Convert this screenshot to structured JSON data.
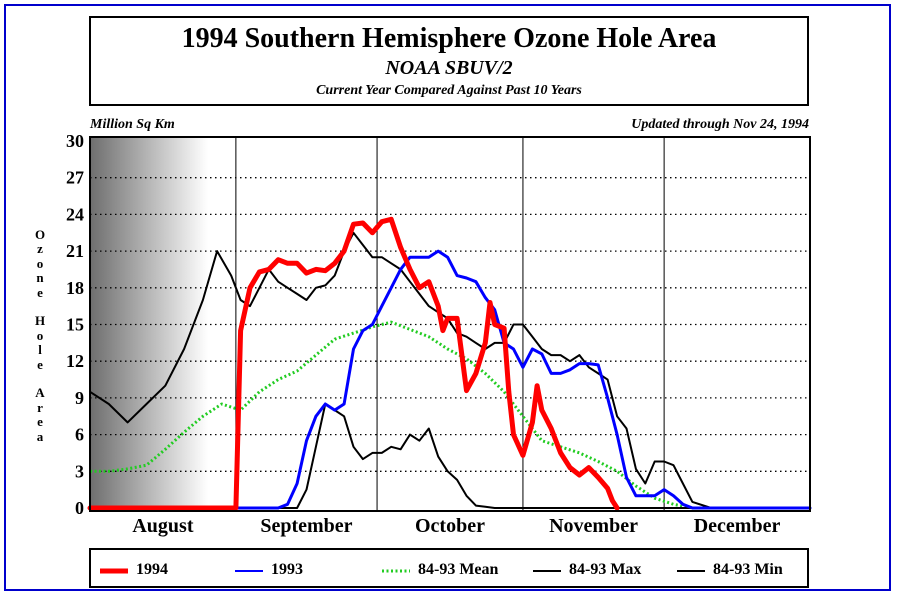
{
  "header": {
    "title": "1994 Southern Hemisphere Ozone Hole Area",
    "subtitle": "NOAA SBUV/2",
    "subsubtitle": "Current Year Compared Against Past 10 Years"
  },
  "annotations": {
    "units": "Million Sq Km",
    "updated": "Updated through Nov 24, 1994"
  },
  "y_axis_label": "Ozone Hole Area",
  "chart_data": {
    "type": "line",
    "title": "1994 Southern Hemisphere Ozone Hole Area",
    "subtitle": "NOAA SBUV/2",
    "xlabel": "",
    "ylabel": "Ozone Hole Area",
    "ylim": [
      0,
      30
    ],
    "y_ticks": [
      "30",
      "27",
      "24",
      "21",
      "18",
      "15",
      "12",
      "9",
      "6",
      "3",
      "0"
    ],
    "y_tick_values": [
      30,
      27,
      24,
      21,
      18,
      15,
      12,
      9,
      6,
      3,
      0
    ],
    "x_units": "day of year",
    "xlim": [
      213,
      366
    ],
    "month_labels": [
      {
        "label": "August",
        "start": 213
      },
      {
        "label": "September",
        "start": 244
      },
      {
        "label": "October",
        "start": 274
      },
      {
        "label": "November",
        "start": 305
      },
      {
        "label": "December",
        "start": 335
      }
    ],
    "grid": {
      "horizontal_dotted": true,
      "month_dividers": true
    },
    "colors": {
      "1994": "#ff0000",
      "1993": "#0000ff",
      "mean": "#22cc22",
      "max": "#000000",
      "min": "#000000"
    },
    "series": [
      {
        "name": "1994",
        "color": "#ff0000",
        "x": [
          213,
          243,
          244,
          245,
          247,
          249,
          251,
          253,
          255,
          257,
          259,
          261,
          263,
          265,
          267,
          269,
          271,
          273,
          275,
          277,
          279,
          281,
          283,
          285,
          287,
          288,
          289,
          291,
          293,
          295,
          297,
          298,
          299,
          301,
          302,
          303,
          305,
          307,
          308,
          309,
          311,
          313,
          315,
          317,
          319,
          321,
          323,
          324,
          325
        ],
        "y": [
          0,
          0,
          0,
          14.5,
          18,
          19.3,
          19.5,
          20.3,
          20,
          20,
          19.2,
          19.5,
          19.4,
          20,
          21,
          23.2,
          23.3,
          22.5,
          23.4,
          23.6,
          21.3,
          19.5,
          18,
          18.5,
          16.5,
          14.5,
          15.5,
          15.5,
          9.6,
          11,
          13.5,
          16.8,
          15,
          14.7,
          9.5,
          6,
          4.3,
          7,
          10,
          8,
          6.5,
          4.5,
          3.3,
          2.7,
          3.3,
          2.5,
          1.6,
          0.6,
          0
        ]
      },
      {
        "name": "1993",
        "color": "#0000ff",
        "x": [
          213,
          245,
          247,
          249,
          251,
          253,
          255,
          257,
          259,
          261,
          263,
          265,
          267,
          269,
          271,
          273,
          275,
          277,
          279,
          281,
          283,
          285,
          287,
          289,
          291,
          293,
          295,
          297,
          299,
          301,
          303,
          305,
          307,
          309,
          311,
          313,
          315,
          317,
          319,
          321,
          323,
          325,
          327,
          329,
          331,
          333,
          335,
          337,
          339,
          341,
          366
        ],
        "y": [
          0,
          0,
          0,
          0,
          0,
          0,
          0.3,
          2,
          5.5,
          7.5,
          8.5,
          8,
          8.5,
          13,
          14.5,
          15,
          16.5,
          18,
          19.5,
          20.5,
          20.5,
          20.5,
          21,
          20.5,
          19,
          18.8,
          18.5,
          17.2,
          16.2,
          13.5,
          13,
          11.5,
          13,
          12.6,
          11,
          11,
          11.3,
          11.8,
          11.8,
          11.7,
          9,
          6,
          2.5,
          1,
          1,
          1,
          1.5,
          1,
          0.3,
          0,
          0
        ]
      },
      {
        "name": "84-93 Mean",
        "color": "#22cc22",
        "x": [
          213,
          217,
          221,
          225,
          229,
          233,
          237,
          241,
          245,
          249,
          253,
          257,
          261,
          265,
          269,
          273,
          277,
          281,
          285,
          289,
          293,
          297,
          301,
          305,
          309,
          313,
          317,
          321,
          325,
          329,
          333,
          337,
          341,
          345,
          349,
          366
        ],
        "y": [
          3,
          3,
          3.2,
          3.5,
          4.8,
          6.2,
          7.5,
          8.5,
          8,
          9.5,
          10.5,
          11.2,
          12.5,
          13.8,
          14.3,
          14.8,
          15.2,
          14.6,
          14,
          13,
          12.2,
          11,
          9.5,
          7.5,
          5.5,
          5,
          4.5,
          3.8,
          3,
          1.8,
          0.8,
          0.3,
          0,
          0,
          0,
          0
        ]
      },
      {
        "name": "84-93 Max",
        "color": "#000000",
        "x": [
          213,
          217,
          221,
          225,
          229,
          233,
          237,
          240,
          243,
          245,
          247,
          249,
          251,
          253,
          255,
          257,
          259,
          261,
          263,
          265,
          267,
          269,
          271,
          273,
          275,
          277,
          279,
          281,
          283,
          285,
          287,
          289,
          291,
          293,
          295,
          297,
          299,
          301,
          303,
          305,
          307,
          309,
          311,
          313,
          315,
          317,
          319,
          321,
          323,
          325,
          327,
          329,
          331,
          333,
          335,
          337,
          339,
          341,
          345,
          366
        ],
        "y": [
          9.5,
          8.5,
          7,
          8.5,
          10,
          13,
          17,
          21,
          19,
          17,
          16.5,
          18,
          19.5,
          18.5,
          18,
          17.5,
          17,
          18,
          18.2,
          19,
          21,
          22.5,
          21.5,
          20.5,
          20.5,
          20,
          19.5,
          18.5,
          17.5,
          16.5,
          16,
          15.5,
          14.3,
          14,
          13.5,
          13,
          13.5,
          13.5,
          15,
          15,
          14,
          13,
          12.5,
          12.5,
          12,
          12.5,
          11.5,
          11,
          10.5,
          7.5,
          6.5,
          3.2,
          2,
          3.8,
          3.8,
          3.5,
          2,
          0.5,
          0,
          0
        ]
      },
      {
        "name": "84-93 Min",
        "color": "#000000",
        "x": [
          213,
          245,
          247,
          249,
          251,
          253,
          255,
          257,
          259,
          261,
          263,
          265,
          267,
          269,
          271,
          273,
          275,
          277,
          279,
          281,
          283,
          285,
          287,
          289,
          291,
          293,
          295,
          297,
          299,
          301,
          303,
          305,
          366
        ],
        "y": [
          0,
          0,
          0,
          0,
          0,
          0,
          0,
          0,
          1.5,
          5,
          8.5,
          8,
          7.5,
          5,
          4,
          4.5,
          4.5,
          5,
          4.8,
          6,
          5.5,
          6.5,
          4.2,
          3,
          2.3,
          1,
          0.2,
          0.1,
          0,
          0,
          0,
          0,
          0
        ]
      }
    ]
  },
  "legend": {
    "items": [
      {
        "label": "1994",
        "color": "#ff0000",
        "style": "solid-thick"
      },
      {
        "label": "1993",
        "color": "#0000ff",
        "style": "solid"
      },
      {
        "label": "84-93 Mean",
        "color": "#22cc22",
        "style": "dotted"
      },
      {
        "label": "84-93 Max",
        "color": "#000000",
        "style": "solid"
      },
      {
        "label": "84-93 Min",
        "color": "#000000",
        "style": "solid"
      }
    ]
  }
}
